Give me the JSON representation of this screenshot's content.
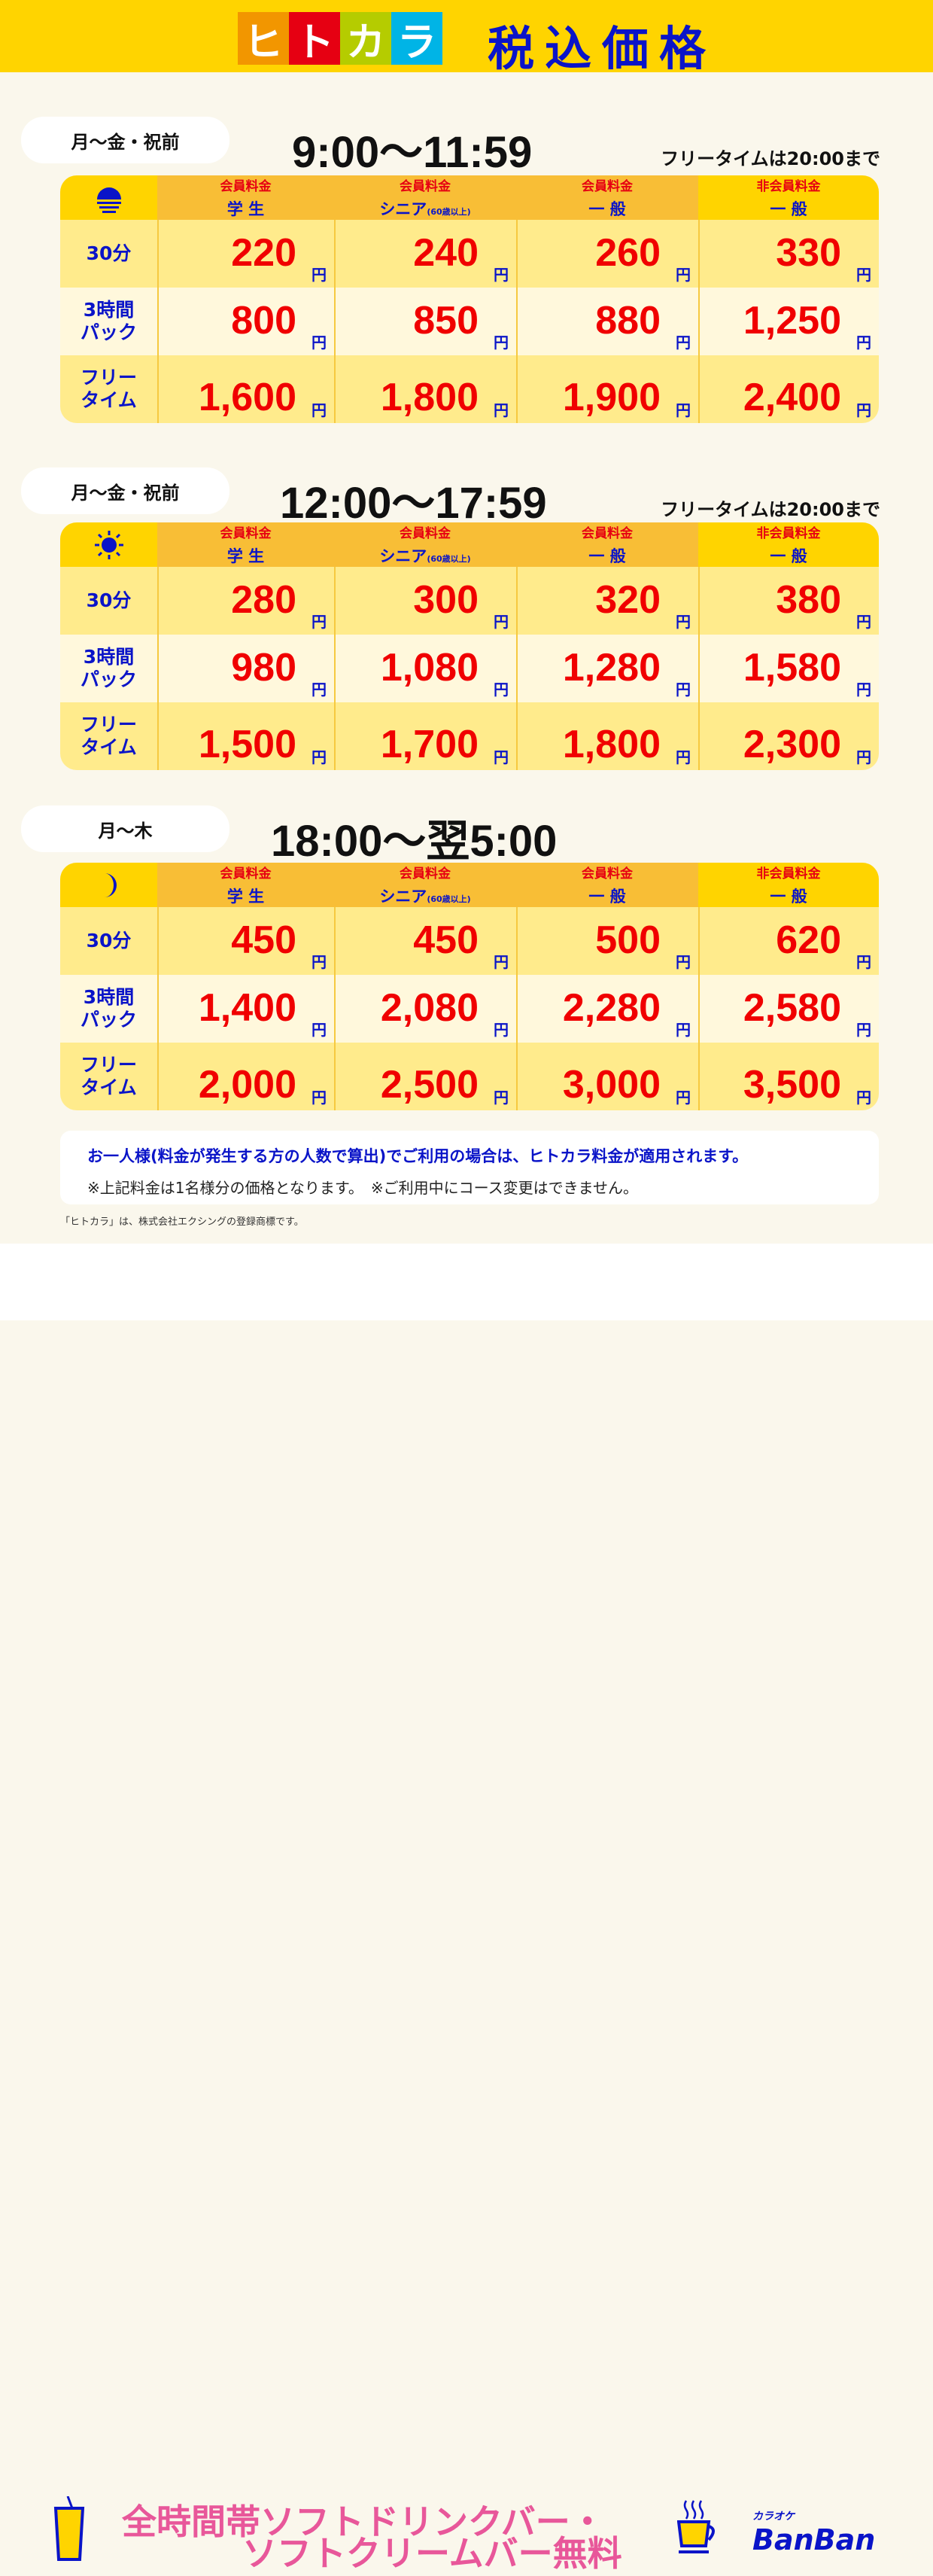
{
  "header": {
    "logo_chars": [
      "ヒ",
      "ト",
      "カ",
      "ラ"
    ],
    "logo_colors": [
      "#f29600",
      "#e60012",
      "#b5cc00",
      "#00b4e6"
    ],
    "title": "税込価格"
  },
  "columns": [
    {
      "top": "会員料金",
      "bottom": "学 生",
      "note": ""
    },
    {
      "top": "会員料金",
      "bottom": "シニア",
      "note": "(60歳以上)"
    },
    {
      "top": "会員料金",
      "bottom": "一 般",
      "note": ""
    },
    {
      "top": "非会員料金",
      "bottom": "一 般",
      "note": ""
    }
  ],
  "row_labels": [
    [
      "30分"
    ],
    [
      "3時間",
      "パック"
    ],
    [
      "フリー",
      "タイム"
    ]
  ],
  "yen": "円",
  "sections": [
    {
      "days": "月〜金・祝前",
      "time": "9:00〜11:59",
      "free_note": "フリータイムは20:00まで",
      "icon": "sunrise-icon",
      "rows": [
        [
          "220",
          "240",
          "260",
          "330"
        ],
        [
          "800",
          "850",
          "880",
          "1,250"
        ],
        [
          "1,600",
          "1,800",
          "1,900",
          "2,400"
        ]
      ]
    },
    {
      "days": "月〜金・祝前",
      "time": "12:00〜17:59",
      "free_note": "フリータイムは20:00まで",
      "icon": "sun-icon",
      "rows": [
        [
          "280",
          "300",
          "320",
          "380"
        ],
        [
          "980",
          "1,080",
          "1,280",
          "1,580"
        ],
        [
          "1,500",
          "1,700",
          "1,800",
          "2,300"
        ]
      ]
    },
    {
      "days": "月〜木",
      "time": "18:00〜翌5:00",
      "free_note": "",
      "icon": "moon-icon",
      "rows": [
        [
          "450",
          "450",
          "500",
          "620"
        ],
        [
          "1,400",
          "2,080",
          "2,280",
          "2,580"
        ],
        [
          "2,000",
          "2,500",
          "3,000",
          "3,500"
        ]
      ]
    }
  ],
  "notice": {
    "line1": "お一人様(料金が発生する方の人数で算出)でご利用の場合は、ヒトカラ料金が適用されます。",
    "line2": "※上記料金は1名様分の価格となります。　※ご利用中にコース変更はできません。"
  },
  "trademark": "「ヒトカラ」は、株式会社エクシングの登録商標です。",
  "footer": {
    "line1": "全時間帯ソフトドリンクバー・",
    "line2": "ソフトクリームバー無料",
    "brand_small": "カラオケ",
    "brand": "BanBan"
  }
}
